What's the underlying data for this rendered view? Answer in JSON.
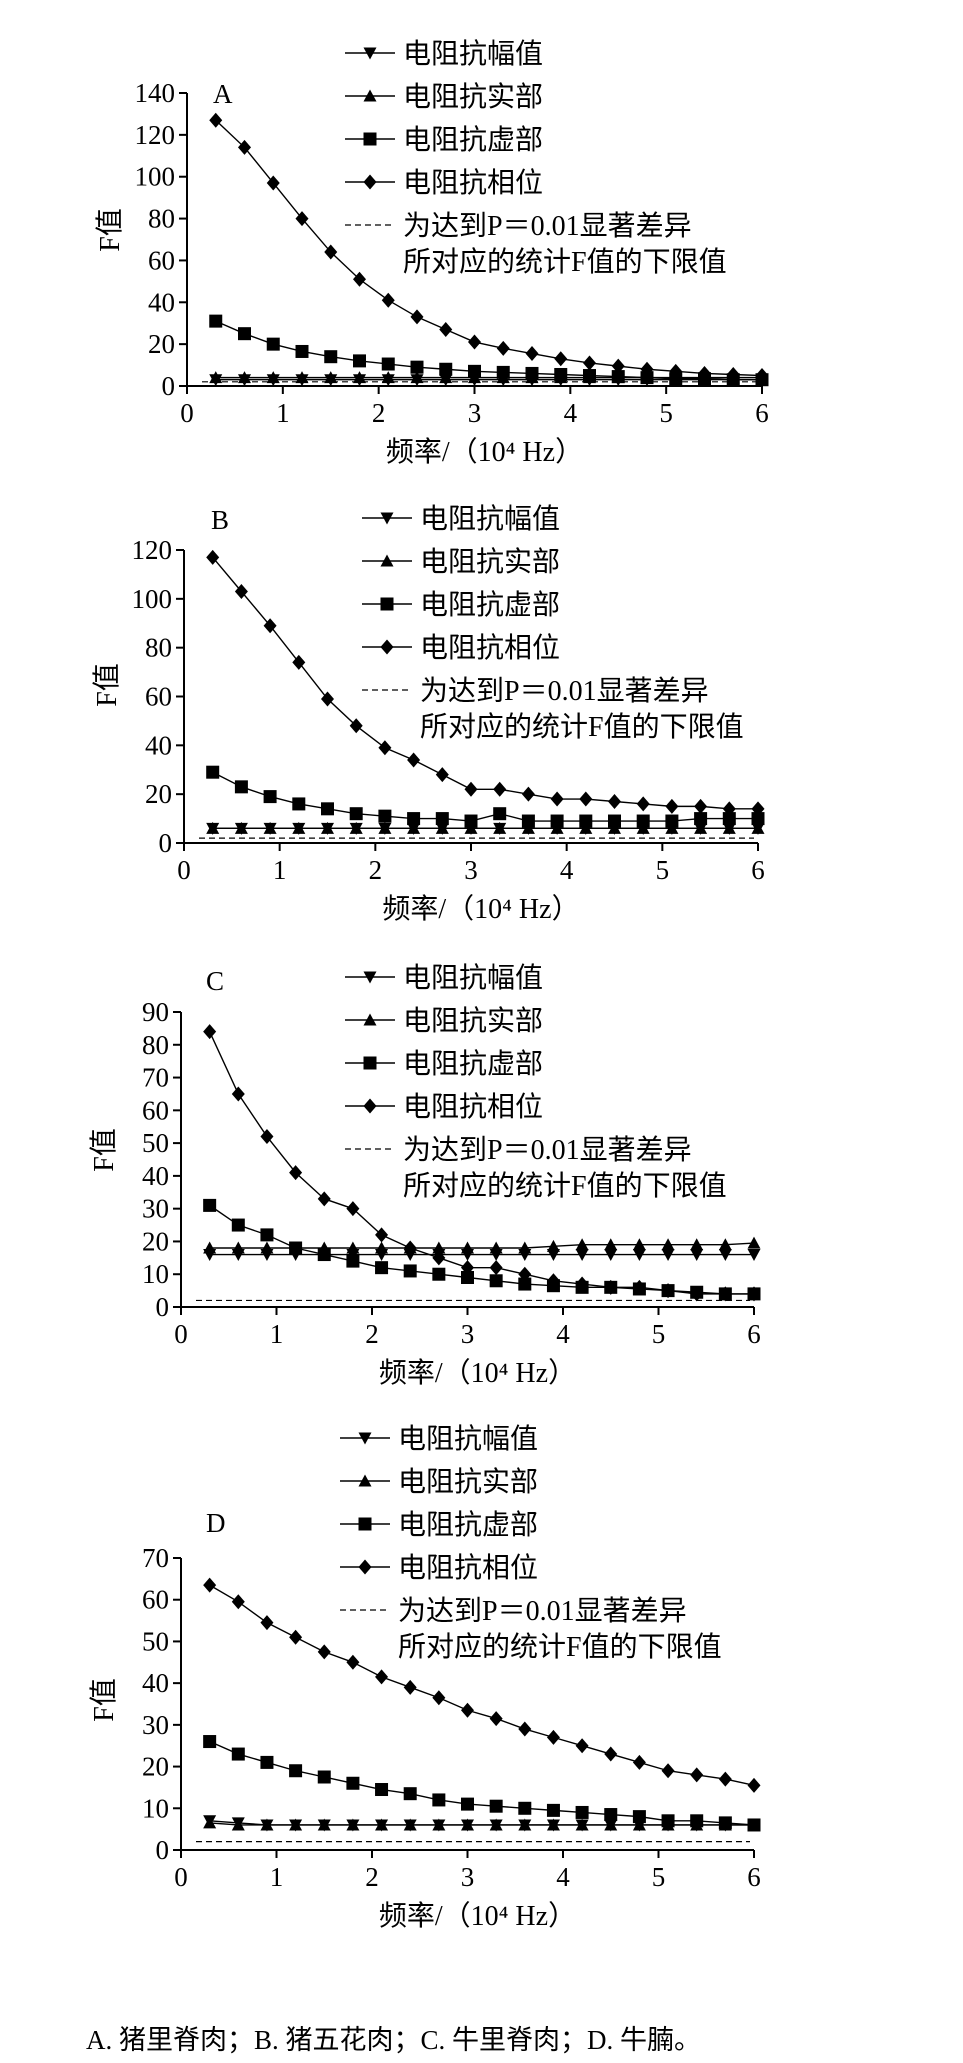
{
  "legend_entries": [
    "电阻抗幅值",
    "电阻抗实部",
    "电阻抗虚部",
    "电阻抗相位"
  ],
  "threshold_label": [
    "为达到P＝0.01显著差异",
    "所对应的统计F值的下限值"
  ],
  "xlabel": "频率/（10⁴ Hz）",
  "ylabel": "F值",
  "caption": "A. 猪里脊肉；B. 猪五花肉；C. 牛里脊肉；D. 牛腩。",
  "chart_data": [
    {
      "type": "line",
      "panel": "A",
      "x": [
        0.3,
        0.6,
        0.9,
        1.2,
        1.5,
        1.8,
        2.1,
        2.4,
        2.7,
        3.0,
        3.3,
        3.6,
        3.9,
        4.2,
        4.5,
        4.8,
        5.1,
        5.4,
        5.7,
        6.0
      ],
      "xticks": [
        0,
        1,
        2,
        3,
        4,
        5,
        6
      ],
      "xlim": [
        0,
        6
      ],
      "yticks": [
        0,
        20,
        40,
        60,
        80,
        100,
        120,
        140
      ],
      "ylim": [
        0,
        140
      ],
      "series": [
        {
          "name": "电阻抗幅值",
          "marker": "triangle-down",
          "values": [
            3,
            3,
            3,
            3,
            3,
            3,
            3,
            3,
            3,
            3,
            3,
            3,
            3,
            3,
            3,
            3,
            3,
            3,
            3,
            3
          ]
        },
        {
          "name": "电阻抗实部",
          "marker": "triangle-up",
          "values": [
            4,
            4,
            4,
            4,
            4,
            4,
            4,
            4,
            4,
            4,
            4,
            4,
            4,
            4,
            4,
            4,
            4,
            4,
            4,
            4
          ]
        },
        {
          "name": "电阻抗虚部",
          "marker": "square",
          "values": [
            31,
            25,
            20,
            16.5,
            14,
            12,
            10.5,
            9,
            8,
            7,
            6.5,
            6,
            5.5,
            5,
            4.5,
            4,
            3.5,
            3.5,
            3,
            3
          ]
        },
        {
          "name": "电阻抗相位",
          "marker": "diamond",
          "values": [
            127,
            114,
            97,
            80,
            64,
            51,
            41,
            33,
            27,
            21,
            18,
            15.5,
            13,
            11,
            9.5,
            8,
            7,
            6,
            5.5,
            5
          ]
        }
      ],
      "threshold": 2
    },
    {
      "type": "line",
      "panel": "B",
      "x": [
        0.3,
        0.6,
        0.9,
        1.2,
        1.5,
        1.8,
        2.1,
        2.4,
        2.7,
        3.0,
        3.3,
        3.6,
        3.9,
        4.2,
        4.5,
        4.8,
        5.1,
        5.4,
        5.7,
        6.0
      ],
      "xticks": [
        0,
        1,
        2,
        3,
        4,
        5,
        6
      ],
      "xlim": [
        0,
        6
      ],
      "yticks": [
        0,
        20,
        40,
        60,
        80,
        100,
        120
      ],
      "ylim": [
        0,
        120
      ],
      "series": [
        {
          "name": "电阻抗幅值",
          "marker": "triangle-down",
          "values": [
            6,
            6,
            6,
            6,
            6,
            6,
            6,
            6,
            6,
            6,
            6,
            6,
            6,
            6,
            6,
            6,
            6,
            6,
            6,
            6
          ]
        },
        {
          "name": "电阻抗实部",
          "marker": "triangle-up",
          "values": [
            6,
            6,
            6,
            6,
            6,
            6,
            6,
            6,
            6,
            6,
            6,
            6,
            6,
            6,
            6,
            6,
            6,
            6,
            6,
            6
          ]
        },
        {
          "name": "电阻抗虚部",
          "marker": "square",
          "values": [
            29,
            23,
            19,
            16,
            14,
            12,
            11,
            10,
            10,
            9,
            12,
            9,
            9,
            9,
            9,
            9,
            9,
            10,
            10,
            10
          ]
        },
        {
          "name": "电阻抗相位",
          "marker": "diamond",
          "values": [
            117,
            103,
            89,
            74,
            59,
            48,
            39,
            34,
            28,
            22,
            22,
            20,
            18,
            18,
            17,
            16,
            15,
            15,
            14,
            14
          ]
        }
      ],
      "threshold": 2
    },
    {
      "type": "line",
      "panel": "C",
      "x": [
        0.3,
        0.6,
        0.9,
        1.2,
        1.5,
        1.8,
        2.1,
        2.4,
        2.7,
        3.0,
        3.3,
        3.6,
        3.9,
        4.2,
        4.5,
        4.8,
        5.1,
        5.4,
        5.7,
        6.0
      ],
      "xticks": [
        0,
        1,
        2,
        3,
        4,
        5,
        6
      ],
      "xlim": [
        0,
        6
      ],
      "yticks": [
        0,
        10,
        20,
        30,
        40,
        50,
        60,
        70,
        80,
        90
      ],
      "ylim": [
        0,
        90
      ],
      "series": [
        {
          "name": "电阻抗幅值",
          "marker": "triangle-down",
          "values": [
            16,
            16,
            16,
            16,
            16,
            16,
            16,
            16,
            16,
            16,
            16,
            16,
            16,
            16,
            16,
            16,
            16,
            16,
            16,
            16
          ]
        },
        {
          "name": "电阻抗实部",
          "marker": "triangle-up",
          "values": [
            18,
            18,
            18,
            18,
            18,
            18,
            18,
            18,
            18,
            18,
            18,
            18,
            18.5,
            19,
            19,
            19,
            19,
            19,
            19,
            19.5
          ]
        },
        {
          "name": "电阻抗虚部",
          "marker": "square",
          "values": [
            31,
            25,
            22,
            18,
            16,
            14,
            12,
            11,
            10,
            9,
            8,
            7,
            6.5,
            6,
            6,
            5.5,
            5,
            4.5,
            4,
            4
          ]
        },
        {
          "name": "电阻抗相位",
          "marker": "diamond",
          "values": [
            84,
            65,
            52,
            41,
            33,
            30,
            22,
            18,
            15,
            12,
            12,
            10,
            8,
            7,
            6,
            6,
            5,
            4,
            4,
            4
          ]
        }
      ],
      "threshold": 2
    },
    {
      "type": "line",
      "panel": "D",
      "x": [
        0.3,
        0.6,
        0.9,
        1.2,
        1.5,
        1.8,
        2.1,
        2.4,
        2.7,
        3.0,
        3.3,
        3.6,
        3.9,
        4.2,
        4.5,
        4.8,
        5.1,
        5.4,
        5.7,
        6.0
      ],
      "xticks": [
        0,
        1,
        2,
        3,
        4,
        5,
        6
      ],
      "xlim": [
        0,
        6
      ],
      "yticks": [
        0,
        10,
        20,
        30,
        40,
        50,
        60,
        70
      ],
      "ylim": [
        0,
        70
      ],
      "series": [
        {
          "name": "电阻抗幅值",
          "marker": "triangle-down",
          "values": [
            7,
            6.5,
            6,
            6,
            6,
            6,
            6,
            6,
            6,
            6,
            6,
            6,
            6,
            6,
            6,
            6,
            6,
            6,
            6,
            6
          ]
        },
        {
          "name": "电阻抗实部",
          "marker": "triangle-up",
          "values": [
            6.5,
            6,
            6,
            6,
            6,
            6,
            6,
            6,
            6,
            6,
            6,
            6,
            6,
            6,
            6,
            6,
            6,
            6,
            6,
            6
          ]
        },
        {
          "name": "电阻抗虚部",
          "marker": "square",
          "values": [
            26,
            23,
            21,
            19,
            17.5,
            16,
            14.5,
            13.5,
            12,
            11,
            10.5,
            10,
            9.5,
            9,
            8.5,
            8,
            7,
            7,
            6.5,
            6
          ]
        },
        {
          "name": "电阻抗相位",
          "marker": "diamond",
          "values": [
            63.5,
            59.5,
            54.5,
            51,
            47.5,
            45,
            41.5,
            39,
            36.5,
            33.5,
            31.5,
            29,
            27,
            25,
            23,
            21,
            19,
            18,
            17,
            15.5
          ]
        }
      ],
      "threshold": 2
    }
  ]
}
